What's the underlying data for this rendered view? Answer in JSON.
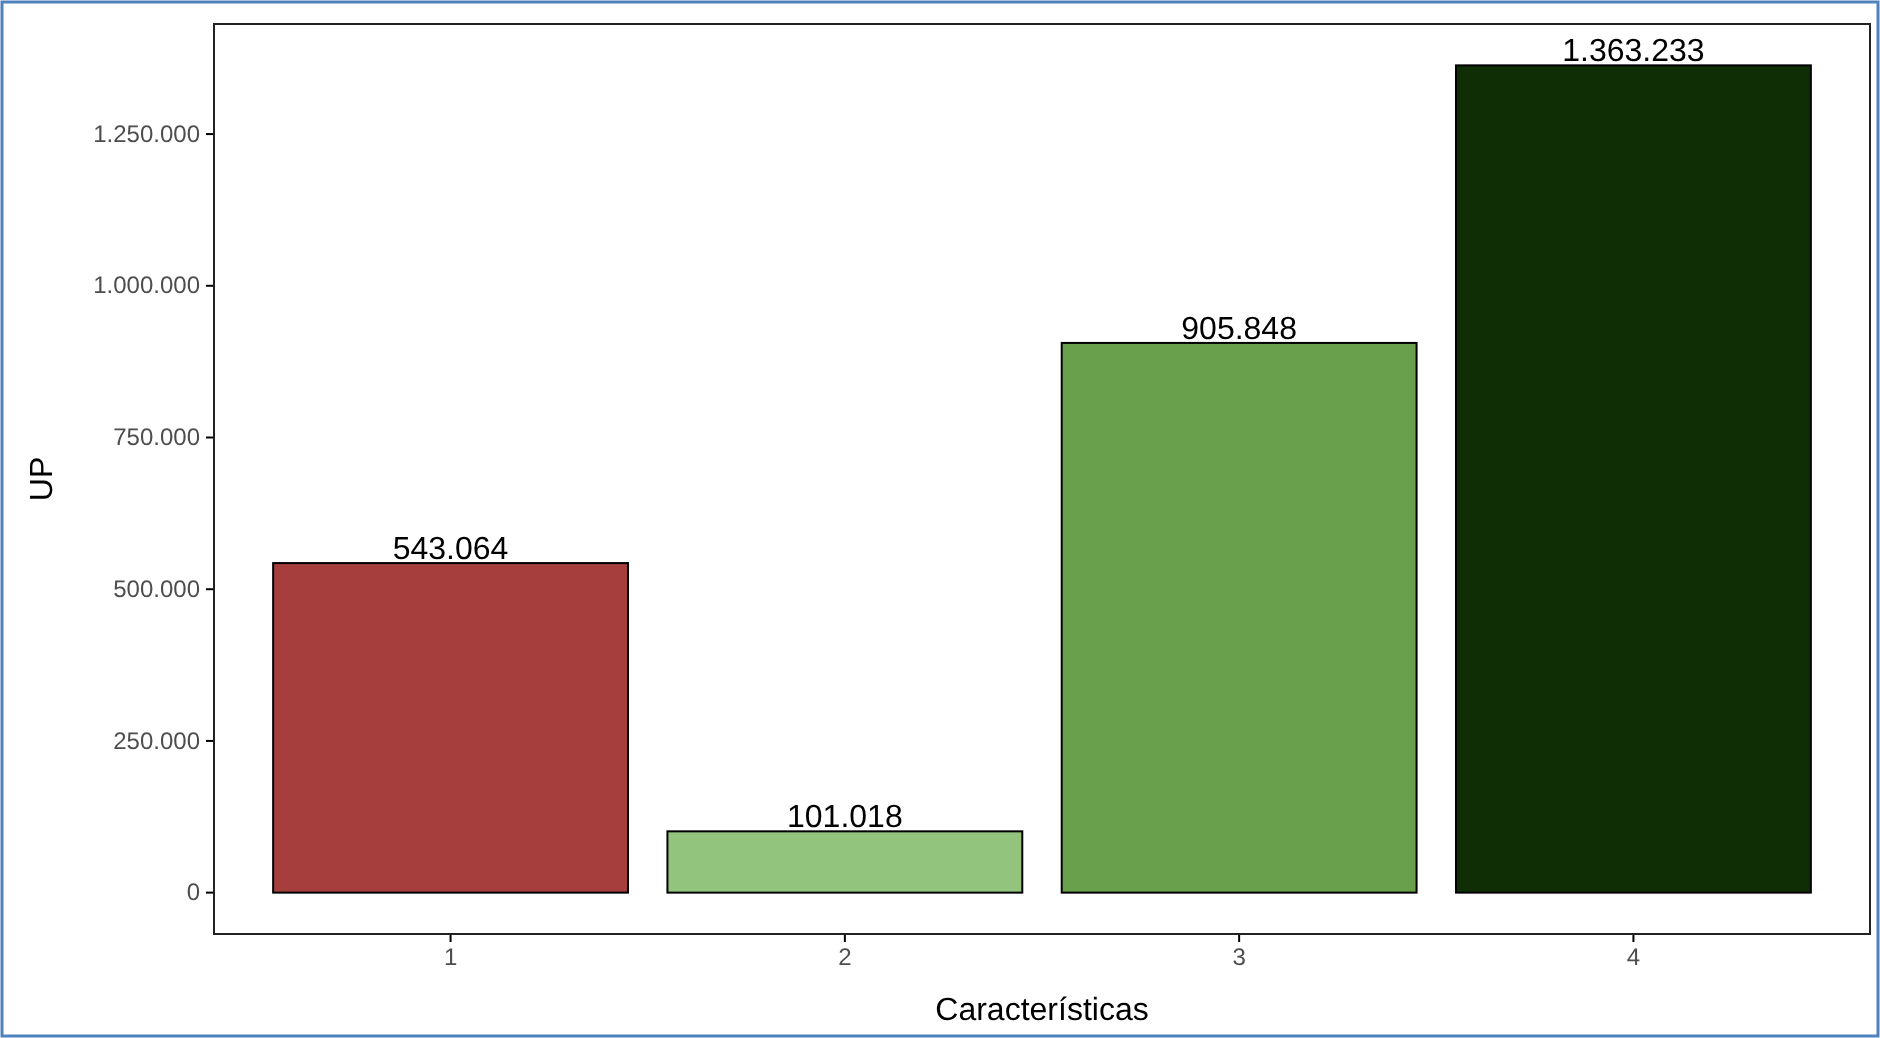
{
  "chart_data": {
    "type": "bar",
    "xlabel": "Características",
    "ylabel": "UP",
    "categories": [
      "1",
      "2",
      "3",
      "4"
    ],
    "values": [
      543064,
      101018,
      905848,
      1363233
    ],
    "colors": [
      "#a63e3e",
      "#93c47d",
      "#68a04b",
      "#0f2e06"
    ],
    "value_labels": [
      "543.064",
      "101.018",
      "905.848",
      "1.363.233"
    ],
    "ylim": [
      -68162,
      1431395
    ],
    "yticks": [
      {
        "value": 0,
        "label": "0"
      },
      {
        "value": 250000,
        "label": "250.000"
      },
      {
        "value": 500000,
        "label": "500.000"
      },
      {
        "value": 750000,
        "label": "750.000"
      },
      {
        "value": 1000000,
        "label": "1.000.000"
      },
      {
        "value": 1250000,
        "label": "1.250.000"
      }
    ],
    "grid": false
  }
}
